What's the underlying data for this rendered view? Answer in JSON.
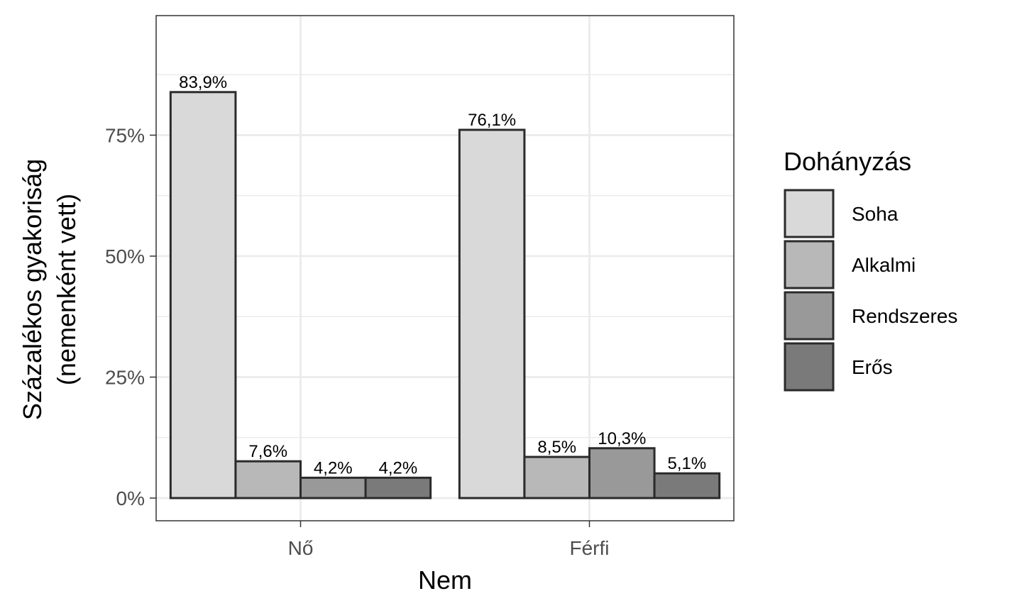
{
  "chart_data": {
    "type": "bar",
    "xlabel": "Nem",
    "ylabel_line1": "Százalékos gyakoriság",
    "ylabel_line2": "(nemenként vett)",
    "categories": [
      "Nő",
      "Férfi"
    ],
    "ylim": [
      0,
      0.95
    ],
    "y_ticks": [
      {
        "value": 0,
        "label": "0%"
      },
      {
        "value": 0.25,
        "label": "25%"
      },
      {
        "value": 0.5,
        "label": "50%"
      },
      {
        "value": 0.75,
        "label": "75%"
      }
    ],
    "grid": true,
    "legend": {
      "title": "Dohányzás",
      "placement": "right"
    },
    "series": [
      {
        "name": "Soha",
        "color": "#d9d9d9",
        "values": [
          0.839,
          0.761
        ],
        "labels": [
          "83,9%",
          "76,1%"
        ]
      },
      {
        "name": "Alkalmi",
        "color": "#b8b8b8",
        "values": [
          0.076,
          0.085
        ],
        "labels": [
          "7,6%",
          "8,5%"
        ]
      },
      {
        "name": "Rendszeres",
        "color": "#999999",
        "values": [
          0.042,
          0.103
        ],
        "labels": [
          "4,2%",
          "10,3%"
        ]
      },
      {
        "name": "Erős",
        "color": "#7a7a7a",
        "values": [
          0.042,
          0.051
        ],
        "labels": [
          "4,2%",
          "5,1%"
        ]
      }
    ]
  }
}
